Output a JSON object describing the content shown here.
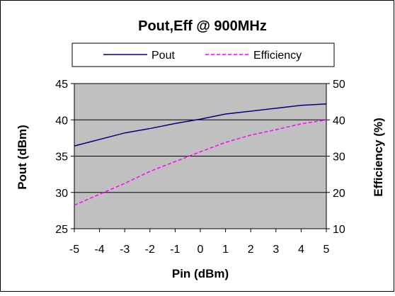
{
  "chart_data": {
    "type": "line",
    "title": "Pout,Eff @ 900MHz",
    "xlabel": "Pin (dBm)",
    "ylabel": "Pout (dBm)",
    "y2label": "Efficiency (%)",
    "x": [
      -5,
      -4,
      -3,
      -2,
      -1,
      0,
      1,
      2,
      3,
      4,
      5
    ],
    "xticks": [
      "-5",
      "-4",
      "-3",
      "-2",
      "-1",
      "0",
      "1",
      "2",
      "3",
      "4",
      "5"
    ],
    "xlim": [
      -5,
      5
    ],
    "ylim": [
      25,
      45
    ],
    "yticks": [
      "25",
      "30",
      "35",
      "40",
      "45"
    ],
    "y2lim": [
      10,
      50
    ],
    "y2ticks": [
      "10",
      "20",
      "30",
      "40",
      "50"
    ],
    "grid": true,
    "legend_position": "top",
    "plot_background": "#c0c0c0",
    "series": [
      {
        "name": "Pout",
        "axis": "left",
        "color": "#000080",
        "dash": "solid",
        "values": [
          36.4,
          37.3,
          38.2,
          38.8,
          39.5,
          40.1,
          40.8,
          41.2,
          41.6,
          42.0,
          42.2
        ]
      },
      {
        "name": "Efficiency",
        "axis": "right",
        "color": "#ff00ff",
        "dash": "dashed",
        "values": [
          16.5,
          19.5,
          22.5,
          25.8,
          28.5,
          31.2,
          33.8,
          35.8,
          37.3,
          38.9,
          40.0
        ]
      }
    ]
  }
}
